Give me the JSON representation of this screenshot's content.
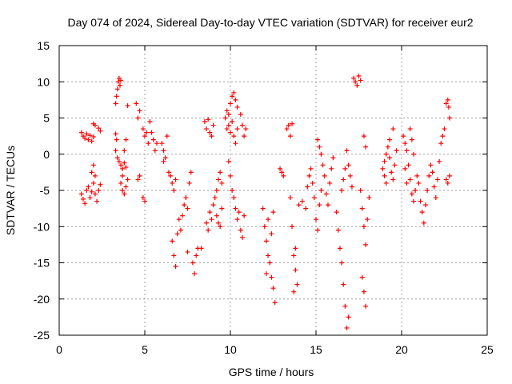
{
  "chart_data": {
    "type": "scatter",
    "title": "Day 074 of 2024, Sidereal Day-to-day VTEC variation (SDTVAR) for receiver eur2",
    "xlabel": "GPS time / hours",
    "ylabel": "SDTVAR / TECUs",
    "xlim": [
      0,
      25
    ],
    "ylim": [
      -25,
      15
    ],
    "xticks": [
      0,
      5,
      10,
      15,
      20,
      25
    ],
    "yticks": [
      -25,
      -20,
      -15,
      -10,
      -5,
      0,
      5,
      10,
      15
    ],
    "grid": true,
    "marker": "+",
    "color": "#ff0000",
    "series": [
      {
        "name": "SDTVAR",
        "points": [
          [
            1.3,
            3.0
          ],
          [
            1.4,
            2.5
          ],
          [
            1.5,
            2.2
          ],
          [
            1.6,
            2.8
          ],
          [
            1.7,
            2.0
          ],
          [
            1.8,
            2.6
          ],
          [
            1.9,
            1.8
          ],
          [
            2.0,
            2.4
          ],
          [
            1.3,
            -5.5
          ],
          [
            1.4,
            -6.2
          ],
          [
            1.5,
            -6.8
          ],
          [
            1.6,
            -5.0
          ],
          [
            1.7,
            -4.5
          ],
          [
            1.8,
            -6.0
          ],
          [
            1.9,
            -5.2
          ],
          [
            2.0,
            -4.0
          ],
          [
            2.1,
            -3.0
          ],
          [
            2.0,
            -1.5
          ],
          [
            1.9,
            -2.5
          ],
          [
            2.1,
            -5.5
          ],
          [
            2.2,
            -6.5
          ],
          [
            2.3,
            -5.0
          ],
          [
            2.4,
            -4.2
          ],
          [
            2.0,
            4.2
          ],
          [
            2.1,
            4.0
          ],
          [
            2.3,
            3.6
          ],
          [
            2.4,
            3.2
          ],
          [
            3.3,
            7.0
          ],
          [
            3.35,
            8.0
          ],
          [
            3.4,
            9.0
          ],
          [
            3.45,
            10.0
          ],
          [
            3.5,
            10.5
          ],
          [
            3.55,
            9.5
          ],
          [
            3.6,
            10.2
          ],
          [
            3.3,
            2.8
          ],
          [
            3.35,
            2.0
          ],
          [
            3.3,
            0.5
          ],
          [
            3.4,
            -0.5
          ],
          [
            3.5,
            -1.0
          ],
          [
            3.6,
            -1.5
          ],
          [
            3.7,
            -2.0
          ],
          [
            3.8,
            -1.2
          ],
          [
            3.9,
            -1.8
          ],
          [
            3.6,
            -4.0
          ],
          [
            3.7,
            -5.0
          ],
          [
            3.8,
            -5.5
          ],
          [
            3.9,
            -4.5
          ],
          [
            4.0,
            -3.5
          ],
          [
            3.7,
            -3.0
          ],
          [
            3.8,
            0.5
          ],
          [
            3.9,
            2.0
          ],
          [
            4.0,
            6.7
          ],
          [
            4.5,
            7.0
          ],
          [
            4.6,
            5.0
          ],
          [
            4.7,
            6.0
          ],
          [
            4.6,
            -3.5
          ],
          [
            4.7,
            -3.0
          ],
          [
            4.9,
            -6.0
          ],
          [
            5.0,
            -6.5
          ],
          [
            4.9,
            3.5
          ],
          [
            5.0,
            2.5
          ],
          [
            5.1,
            3.0
          ],
          [
            5.2,
            1.5
          ],
          [
            5.3,
            4.5
          ],
          [
            5.4,
            3.0
          ],
          [
            5.5,
            2.0
          ],
          [
            5.6,
            0.5
          ],
          [
            5.7,
            1.5
          ],
          [
            6.0,
            1.5
          ],
          [
            6.1,
            0.5
          ],
          [
            6.2,
            -0.5
          ],
          [
            6.3,
            2.5
          ],
          [
            6.1,
            -1.0
          ],
          [
            6.4,
            -2.5
          ],
          [
            6.5,
            -3.0
          ],
          [
            6.6,
            -4.0
          ],
          [
            6.7,
            -5.0
          ],
          [
            6.8,
            -3.5
          ],
          [
            6.6,
            -12.0
          ],
          [
            6.7,
            -14.0
          ],
          [
            6.8,
            -15.5
          ],
          [
            6.9,
            -11.0
          ],
          [
            7.0,
            -9.0
          ],
          [
            7.1,
            -10.5
          ],
          [
            7.2,
            -8.5
          ],
          [
            7.3,
            -7.0
          ],
          [
            7.4,
            -6.0
          ],
          [
            7.5,
            -7.5
          ],
          [
            7.6,
            -4.0
          ],
          [
            7.7,
            -2.5
          ],
          [
            7.5,
            -13.5
          ],
          [
            7.8,
            -15.0
          ],
          [
            7.9,
            -16.5
          ],
          [
            8.0,
            -14.0
          ],
          [
            8.1,
            -13.0
          ],
          [
            8.3,
            -13.0
          ],
          [
            8.6,
            -9.5
          ],
          [
            8.7,
            -10.5
          ],
          [
            8.8,
            -8.0
          ],
          [
            8.9,
            -9.0
          ],
          [
            9.0,
            -7.0
          ],
          [
            9.1,
            -6.0
          ],
          [
            9.2,
            -5.0
          ],
          [
            9.3,
            -3.5
          ],
          [
            9.4,
            -2.5
          ],
          [
            9.5,
            -4.0
          ],
          [
            8.5,
            4.5
          ],
          [
            8.6,
            3.5
          ],
          [
            8.7,
            4.8
          ],
          [
            8.8,
            3.0
          ],
          [
            8.9,
            2.5
          ],
          [
            9.0,
            4.0
          ],
          [
            9.2,
            -8.5
          ],
          [
            9.3,
            -9.5
          ],
          [
            9.4,
            -10.0
          ],
          [
            9.5,
            -7.5
          ],
          [
            9.7,
            5.0
          ],
          [
            9.8,
            6.0
          ],
          [
            9.9,
            5.5
          ],
          [
            10.0,
            7.0
          ],
          [
            10.1,
            8.0
          ],
          [
            10.2,
            8.5
          ],
          [
            10.3,
            7.5
          ],
          [
            10.4,
            6.5
          ],
          [
            9.8,
            3.5
          ],
          [
            9.9,
            4.0
          ],
          [
            10.0,
            3.0
          ],
          [
            10.1,
            4.5
          ],
          [
            10.2,
            2.5
          ],
          [
            10.3,
            1.5
          ],
          [
            10.4,
            3.5
          ],
          [
            9.9,
            -1.0
          ],
          [
            10.0,
            -3.0
          ],
          [
            10.1,
            -5.0
          ],
          [
            10.2,
            -6.0
          ],
          [
            10.3,
            -7.5
          ],
          [
            10.4,
            -9.0
          ],
          [
            10.5,
            -8.0
          ],
          [
            10.6,
            -10.5
          ],
          [
            10.7,
            -11.5
          ],
          [
            10.8,
            -8.5
          ],
          [
            10.6,
            5.5
          ],
          [
            10.7,
            4.0
          ],
          [
            10.8,
            2.5
          ],
          [
            10.9,
            3.5
          ],
          [
            11.9,
            -7.5
          ],
          [
            12.0,
            -10.0
          ],
          [
            12.1,
            -12.0
          ],
          [
            12.2,
            -14.0
          ],
          [
            12.3,
            -15.0
          ],
          [
            12.4,
            -17.0
          ],
          [
            12.5,
            -18.5
          ],
          [
            12.6,
            -20.5
          ],
          [
            12.1,
            -16.5
          ],
          [
            12.2,
            -9.0
          ],
          [
            12.4,
            -11.0
          ],
          [
            12.5,
            -8.0
          ],
          [
            12.9,
            -2.0
          ],
          [
            13.0,
            -2.5
          ],
          [
            13.1,
            -3.0
          ],
          [
            13.3,
            3.5
          ],
          [
            13.4,
            4.0
          ],
          [
            13.5,
            2.5
          ],
          [
            13.6,
            4.2
          ],
          [
            13.5,
            -6.0
          ],
          [
            13.6,
            -10.0
          ],
          [
            13.7,
            -14.0
          ],
          [
            13.8,
            -16.0
          ],
          [
            13.9,
            -18.0
          ],
          [
            13.7,
            -19.0
          ],
          [
            13.8,
            -13.0
          ],
          [
            14.0,
            -7.0
          ],
          [
            14.2,
            -6.5
          ],
          [
            14.4,
            -7.5
          ],
          [
            14.5,
            -4.5
          ],
          [
            14.6,
            -3.0
          ],
          [
            14.7,
            -2.0
          ],
          [
            14.8,
            -4.0
          ],
          [
            14.9,
            -6.0
          ],
          [
            15.0,
            -9.0
          ],
          [
            15.1,
            -10.5
          ],
          [
            15.2,
            -7.0
          ],
          [
            15.3,
            -5.0
          ],
          [
            15.1,
            2.0
          ],
          [
            15.2,
            1.0
          ],
          [
            15.3,
            0.0
          ],
          [
            15.4,
            -1.5
          ],
          [
            15.5,
            -3.0
          ],
          [
            15.6,
            -5.5
          ],
          [
            15.7,
            -7.0
          ],
          [
            15.8,
            -4.0
          ],
          [
            15.9,
            -2.0
          ],
          [
            16.0,
            -0.5
          ],
          [
            16.2,
            -8.0
          ],
          [
            16.3,
            -10.5
          ],
          [
            16.4,
            -13.0
          ],
          [
            16.5,
            -15.0
          ],
          [
            16.6,
            -18.0
          ],
          [
            16.7,
            -21.0
          ],
          [
            16.8,
            -24.0
          ],
          [
            16.9,
            -22.5
          ],
          [
            16.5,
            -5.0
          ],
          [
            16.6,
            -3.5
          ],
          [
            16.7,
            -2.0
          ],
          [
            16.8,
            0.5
          ],
          [
            16.9,
            -1.5
          ],
          [
            17.0,
            -3.0
          ],
          [
            17.1,
            -4.5
          ],
          [
            17.2,
            10.5
          ],
          [
            17.3,
            10.0
          ],
          [
            17.4,
            9.5
          ],
          [
            17.5,
            10.8
          ],
          [
            17.6,
            10.2
          ],
          [
            17.6,
            -5.0
          ],
          [
            17.7,
            -7.5
          ],
          [
            17.8,
            -10.0
          ],
          [
            17.9,
            -12.5
          ],
          [
            18.0,
            -9.0
          ],
          [
            18.1,
            -6.0
          ],
          [
            17.8,
            2.5
          ],
          [
            17.9,
            1.0
          ],
          [
            17.7,
            -17.0
          ],
          [
            17.8,
            -19.0
          ],
          [
            17.9,
            -21.0
          ],
          [
            18.9,
            -2.0
          ],
          [
            19.0,
            -1.0
          ],
          [
            19.1,
            0.0
          ],
          [
            19.2,
            1.0
          ],
          [
            19.3,
            -0.5
          ],
          [
            19.4,
            -2.5
          ],
          [
            19.5,
            -3.5
          ],
          [
            19.6,
            -1.5
          ],
          [
            19.7,
            0.5
          ],
          [
            19.0,
            -3.0
          ],
          [
            19.1,
            -4.0
          ],
          [
            19.3,
            2.0
          ],
          [
            19.5,
            3.5
          ],
          [
            20.1,
            2.5
          ],
          [
            20.2,
            1.5
          ],
          [
            20.3,
            0.5
          ],
          [
            20.4,
            -1.5
          ],
          [
            20.5,
            -3.5
          ],
          [
            20.6,
            -5.5
          ],
          [
            20.7,
            -6.5
          ],
          [
            20.8,
            -5.0
          ],
          [
            20.9,
            -3.0
          ],
          [
            20.2,
            -2.0
          ],
          [
            20.3,
            -4.0
          ],
          [
            20.5,
            3.5
          ],
          [
            20.6,
            2.0
          ],
          [
            20.7,
            0.0
          ],
          [
            21.0,
            -4.0
          ],
          [
            21.1,
            -6.5
          ],
          [
            21.2,
            -8.0
          ],
          [
            21.3,
            -9.5
          ],
          [
            21.4,
            -7.0
          ],
          [
            21.5,
            -5.0
          ],
          [
            21.6,
            -3.0
          ],
          [
            21.7,
            -1.5
          ],
          [
            21.8,
            -2.5
          ],
          [
            21.9,
            -4.5
          ],
          [
            22.0,
            -6.0
          ],
          [
            22.1,
            -3.5
          ],
          [
            22.2,
            -1.0
          ],
          [
            22.3,
            1.5
          ],
          [
            22.4,
            2.5
          ],
          [
            22.5,
            3.5
          ],
          [
            22.6,
            7.0
          ],
          [
            22.7,
            7.5
          ],
          [
            22.75,
            6.5
          ],
          [
            22.8,
            5.0
          ],
          [
            22.6,
            -3.5
          ],
          [
            22.7,
            -4.0
          ],
          [
            22.8,
            -3.0
          ]
        ]
      }
    ]
  }
}
